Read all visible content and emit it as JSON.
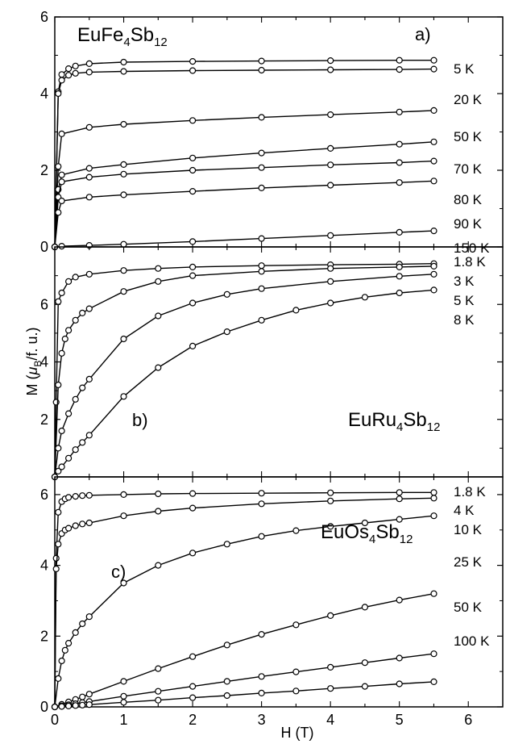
{
  "chart_data": [
    {
      "panel": "a)",
      "type": "line",
      "compound": {
        "base": "EuFe",
        "sub1": "4",
        "mid": "Sb",
        "sub2": "12"
      },
      "ylim": [
        0,
        6
      ],
      "xlim": [
        0,
        6.5
      ],
      "y_ticks": [
        "0",
        "2",
        "4",
        "6"
      ],
      "series": [
        {
          "name": "5 K",
          "x": [
            0,
            0.05,
            0.1,
            0.2,
            0.3,
            0.5,
            1,
            2,
            3,
            4,
            5,
            5.5
          ],
          "values": [
            0,
            4.05,
            4.5,
            4.65,
            4.72,
            4.78,
            4.82,
            4.84,
            4.85,
            4.86,
            4.87,
            4.87
          ]
        },
        {
          "name": "20 K",
          "x": [
            0,
            0.05,
            0.1,
            0.2,
            0.3,
            0.5,
            1,
            2,
            3,
            4,
            5,
            5.5
          ],
          "values": [
            0,
            4.0,
            4.35,
            4.48,
            4.53,
            4.56,
            4.58,
            4.6,
            4.61,
            4.62,
            4.63,
            4.64
          ]
        },
        {
          "name": "50 K",
          "x": [
            0,
            0.05,
            0.1,
            0.5,
            1,
            2,
            3,
            4,
            5,
            5.5
          ],
          "values": [
            0,
            2.1,
            2.95,
            3.12,
            3.2,
            3.3,
            3.38,
            3.45,
            3.52,
            3.56
          ]
        },
        {
          "name": "70 K",
          "x": [
            0,
            0.05,
            0.1,
            0.5,
            1,
            2,
            3,
            4,
            5,
            5.5
          ],
          "values": [
            0,
            1.5,
            1.88,
            2.05,
            2.15,
            2.32,
            2.45,
            2.57,
            2.68,
            2.74
          ]
        },
        {
          "name": "80 K",
          "x": [
            0,
            0.05,
            0.1,
            0.5,
            1,
            2,
            3,
            4,
            5,
            5.5
          ],
          "values": [
            0,
            1.3,
            1.7,
            1.82,
            1.9,
            2.0,
            2.07,
            2.14,
            2.2,
            2.24
          ]
        },
        {
          "name": "90 K",
          "x": [
            0,
            0.05,
            0.1,
            0.5,
            1,
            2,
            3,
            4,
            5,
            5.5
          ],
          "values": [
            0,
            0.9,
            1.2,
            1.3,
            1.36,
            1.45,
            1.54,
            1.61,
            1.68,
            1.72
          ]
        },
        {
          "name": "150 K",
          "x": [
            0,
            0.1,
            0.5,
            1,
            2,
            3,
            4,
            5,
            5.5
          ],
          "values": [
            0,
            0.02,
            0.04,
            0.07,
            0.14,
            0.22,
            0.3,
            0.38,
            0.42
          ]
        }
      ]
    },
    {
      "panel": "b)",
      "type": "line",
      "compound": {
        "base": "EuRu",
        "sub1": "4",
        "mid": "Sb",
        "sub2": "12"
      },
      "ylim": [
        0,
        8
      ],
      "xlim": [
        0,
        6.5
      ],
      "y_ticks": [
        "2",
        "4",
        "6"
      ],
      "series": [
        {
          "name": "1.8 K",
          "x": [
            0,
            0.02,
            0.05,
            0.1,
            0.2,
            0.3,
            0.5,
            1,
            1.5,
            2,
            3,
            4,
            5,
            5.5
          ],
          "values": [
            0,
            2.6,
            6.1,
            6.4,
            6.8,
            6.95,
            7.05,
            7.18,
            7.25,
            7.3,
            7.35,
            7.38,
            7.4,
            7.42
          ]
        },
        {
          "name": "3 K",
          "x": [
            0,
            0.05,
            0.1,
            0.15,
            0.2,
            0.3,
            0.4,
            0.5,
            1,
            1.5,
            2,
            3,
            4,
            5,
            5.5
          ],
          "values": [
            0,
            3.2,
            4.3,
            4.8,
            5.1,
            5.45,
            5.7,
            5.85,
            6.45,
            6.8,
            7.0,
            7.15,
            7.25,
            7.3,
            7.33
          ]
        },
        {
          "name": "5 K",
          "x": [
            0,
            0.05,
            0.1,
            0.2,
            0.3,
            0.4,
            0.5,
            1,
            1.5,
            2,
            2.5,
            3,
            4,
            5,
            5.5
          ],
          "values": [
            0,
            1.0,
            1.6,
            2.2,
            2.7,
            3.1,
            3.4,
            4.8,
            5.6,
            6.05,
            6.35,
            6.55,
            6.8,
            6.98,
            7.05
          ]
        },
        {
          "name": "8 K",
          "x": [
            0,
            0.05,
            0.1,
            0.2,
            0.3,
            0.4,
            0.5,
            1,
            1.5,
            2,
            2.5,
            3,
            3.5,
            4,
            4.5,
            5,
            5.5
          ],
          "values": [
            0,
            0.2,
            0.35,
            0.65,
            0.95,
            1.2,
            1.45,
            2.8,
            3.8,
            4.55,
            5.05,
            5.45,
            5.8,
            6.05,
            6.25,
            6.4,
            6.5
          ]
        }
      ]
    },
    {
      "panel": "c)",
      "type": "line",
      "compound": {
        "base": "EuOs",
        "sub1": "4",
        "mid": "Sb",
        "sub2": "12"
      },
      "ylim": [
        0,
        6.5
      ],
      "xlim": [
        0,
        6.5
      ],
      "y_ticks": [
        "0",
        "2",
        "4",
        "6"
      ],
      "x_ticks": [
        "0",
        "1",
        "2",
        "3",
        "4",
        "5",
        "6"
      ],
      "xlabel": "H (T)",
      "series": [
        {
          "name": "1.8 K",
          "x": [
            0,
            0.02,
            0.05,
            0.1,
            0.15,
            0.2,
            0.3,
            0.4,
            0.5,
            1,
            1.5,
            2,
            3,
            4,
            5,
            5.5
          ],
          "values": [
            0,
            4.2,
            5.5,
            5.8,
            5.88,
            5.92,
            5.95,
            5.97,
            5.98,
            6.0,
            6.02,
            6.03,
            6.04,
            6.05,
            6.06,
            6.06
          ]
        },
        {
          "name": "4 K",
          "x": [
            0,
            0.02,
            0.05,
            0.1,
            0.15,
            0.2,
            0.3,
            0.4,
            0.5,
            1,
            1.5,
            2,
            3,
            4,
            5,
            5.5
          ],
          "values": [
            0,
            3.9,
            4.6,
            4.9,
            5.0,
            5.05,
            5.12,
            5.17,
            5.2,
            5.4,
            5.53,
            5.62,
            5.74,
            5.82,
            5.88,
            5.9
          ]
        },
        {
          "name": "10 K",
          "x": [
            0,
            0.05,
            0.1,
            0.15,
            0.2,
            0.3,
            0.4,
            0.5,
            1,
            1.5,
            2,
            2.5,
            3,
            3.5,
            4,
            4.5,
            5,
            5.5
          ],
          "values": [
            0,
            0.8,
            1.3,
            1.6,
            1.8,
            2.1,
            2.35,
            2.55,
            3.5,
            4.0,
            4.35,
            4.6,
            4.82,
            4.98,
            5.1,
            5.2,
            5.3,
            5.4
          ]
        },
        {
          "name": "25 K",
          "x": [
            0,
            0.1,
            0.2,
            0.3,
            0.4,
            0.5,
            1,
            1.5,
            2,
            2.5,
            3,
            3.5,
            4,
            4.5,
            5,
            5.5
          ],
          "values": [
            0,
            0.07,
            0.14,
            0.21,
            0.28,
            0.36,
            0.72,
            1.08,
            1.42,
            1.75,
            2.05,
            2.32,
            2.58,
            2.82,
            3.02,
            3.2
          ]
        },
        {
          "name": "50 K",
          "x": [
            0,
            0.1,
            0.2,
            0.3,
            0.4,
            0.5,
            1,
            1.5,
            2,
            2.5,
            3,
            3.5,
            4,
            4.5,
            5,
            5.5
          ],
          "values": [
            0,
            0.03,
            0.06,
            0.09,
            0.12,
            0.15,
            0.3,
            0.44,
            0.58,
            0.72,
            0.86,
            0.99,
            1.12,
            1.25,
            1.38,
            1.5
          ]
        },
        {
          "name": "100 K",
          "x": [
            0,
            0.1,
            0.2,
            0.3,
            0.4,
            0.5,
            1,
            1.5,
            2,
            2.5,
            3,
            3.5,
            4,
            4.5,
            5,
            5.5
          ],
          "values": [
            0,
            0.012,
            0.025,
            0.038,
            0.05,
            0.063,
            0.13,
            0.19,
            0.26,
            0.32,
            0.39,
            0.45,
            0.52,
            0.58,
            0.65,
            0.71
          ]
        }
      ]
    }
  ],
  "ylabel": {
    "pre": "M (",
    "mu": "μ",
    "sub": "B",
    "post": "/f. u.)"
  }
}
